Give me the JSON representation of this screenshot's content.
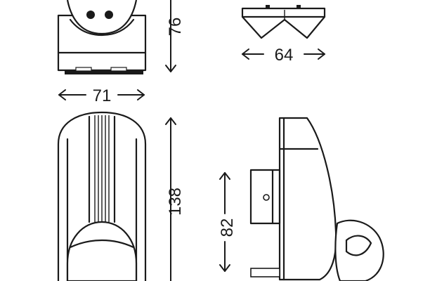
{
  "dimensions": {
    "front_height": "76",
    "top_width": "64",
    "front_width": "71",
    "side_height": "138",
    "mount_height": "82"
  }
}
